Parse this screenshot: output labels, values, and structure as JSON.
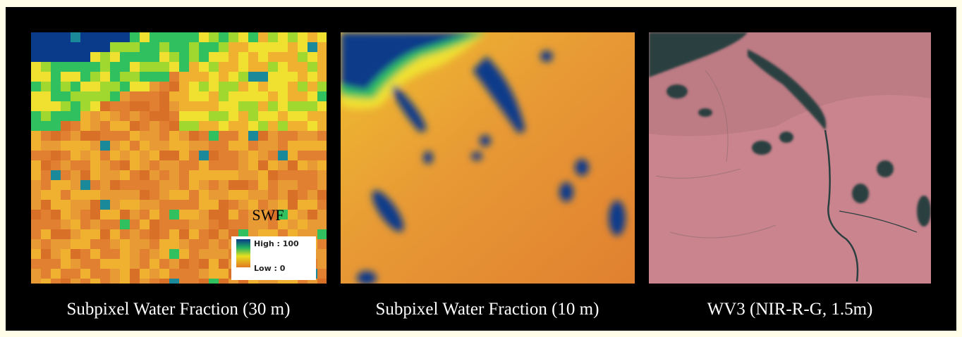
{
  "panels": [
    {
      "caption": "Subpixel Water Fraction (30 m)",
      "legend": {
        "title": "SWF",
        "high": "High : 100",
        "low": "Low : 0"
      }
    },
    {
      "caption": "Subpixel Water Fraction (10 m)"
    },
    {
      "caption": "WV3 (NIR-R-G, 1.5m)"
    }
  ]
}
